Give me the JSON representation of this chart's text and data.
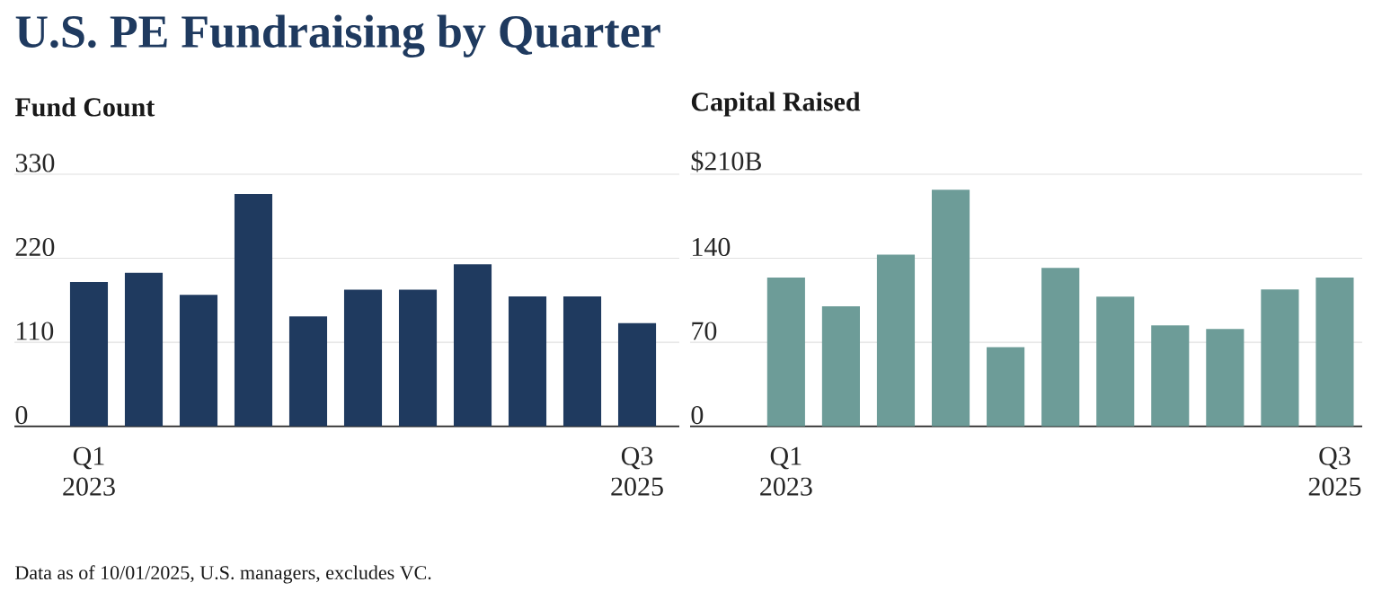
{
  "chart_data": [
    {
      "type": "bar",
      "title": "U.S. PE Fundraising by Quarter",
      "ylabel": "Fund Count",
      "categories": [
        "Q1 2023",
        null,
        null,
        null,
        null,
        null,
        null,
        null,
        null,
        null,
        "Q3 2025"
      ],
      "values": [
        189,
        201,
        172,
        304,
        144,
        179,
        179,
        212,
        170,
        170,
        135
      ],
      "color": "#1f3a5f",
      "ylim": [
        0,
        330
      ],
      "yticks": [
        0,
        110,
        220,
        330
      ],
      "grid": "y",
      "annotations": [
        "Data as of 10/01/2025, U.S. managers, excludes VC."
      ]
    },
    {
      "type": "bar",
      "ylabel": "Capital Raised",
      "categories": [
        "Q1 2023",
        null,
        null,
        null,
        null,
        null,
        null,
        null,
        null,
        null,
        "Q3 2025"
      ],
      "values": [
        124,
        100,
        143,
        197,
        66,
        132,
        108,
        84,
        81,
        114,
        124
      ],
      "color": "#6d9c98",
      "ylim": [
        0,
        210
      ],
      "yticks": [
        0,
        70,
        140,
        {
          "value": 210,
          "label": "$210B"
        }
      ],
      "grid": "y"
    }
  ]
}
